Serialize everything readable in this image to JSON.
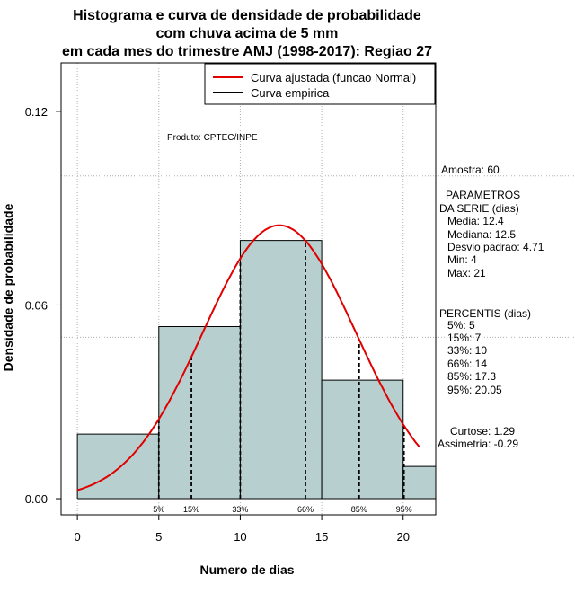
{
  "chart_data": {
    "type": "bar",
    "title_lines": [
      "Histograma e curva de densidade de probabilidade",
      "com chuva acima de 5 mm",
      "em cada mes do trimestre AMJ (1998-2017): Regiao 27"
    ],
    "xlabel": "Numero de dias",
    "ylabel": "Densidade de probabilidade",
    "xlim": [
      -1,
      22
    ],
    "ylim": [
      -0.005,
      0.135
    ],
    "x_ticks": [
      0,
      5,
      10,
      15,
      20
    ],
    "x_tick_labels": [
      "0",
      "5",
      "10",
      "15",
      "20"
    ],
    "y_ticks": [
      0.0,
      0.06,
      0.12
    ],
    "y_tick_labels": [
      "0.00",
      "0.06",
      "0.12"
    ],
    "grid_y": [
      0.05,
      0.1
    ],
    "bins": [
      {
        "from": 0,
        "to": 5,
        "density": 0.02
      },
      {
        "from": 5,
        "to": 10,
        "density": 0.0533
      },
      {
        "from": 10,
        "to": 15,
        "density": 0.08
      },
      {
        "from": 15,
        "to": 20,
        "density": 0.0367
      },
      {
        "from": 20,
        "to": 22,
        "density": 0.01
      }
    ],
    "fitted_curve": {
      "distribution": "normal",
      "mean": 12.4,
      "sd": 4.71,
      "x_from": 0,
      "x_to": 21
    },
    "percentile_lines": [
      {
        "label": "5%",
        "x": 5
      },
      {
        "label": "15%",
        "x": 7
      },
      {
        "label": "33%",
        "x": 10
      },
      {
        "label": "66%",
        "x": 14
      },
      {
        "label": "85%",
        "x": 17.3
      },
      {
        "label": "95%",
        "x": 20.05
      }
    ],
    "legend": [
      {
        "label": "Curva ajustada (funcao Normal)",
        "color": "#e00000"
      },
      {
        "label": "Curva empirica",
        "color": "#000000"
      }
    ],
    "legend_position": "top-right",
    "annotation": "Produto: CPTEC/INPE",
    "side_text": {
      "sample": "Amostra: 60",
      "params_title_1": "PARAMETROS",
      "params_title_2": "DA SERIE (dias)",
      "params": [
        "Media: 12.4",
        "Mediana: 12.5",
        "Desvio padrao: 4.71",
        "Min: 4",
        "Max: 21"
      ],
      "percentis_title": "PERCENTIS (dias)",
      "percentis": [
        "5%: 5",
        "15%: 7",
        "33%: 10",
        "66%: 14",
        "85%: 17.3",
        "95%: 20.05"
      ],
      "kurtosis": "Curtose: 1.29",
      "skewness": "Assimetria: -0.29"
    },
    "colors": {
      "bar_fill": "#b7cfcf",
      "bar_stroke": "#000000",
      "curve": "#e00000",
      "grid": "#b0b0b0"
    }
  }
}
